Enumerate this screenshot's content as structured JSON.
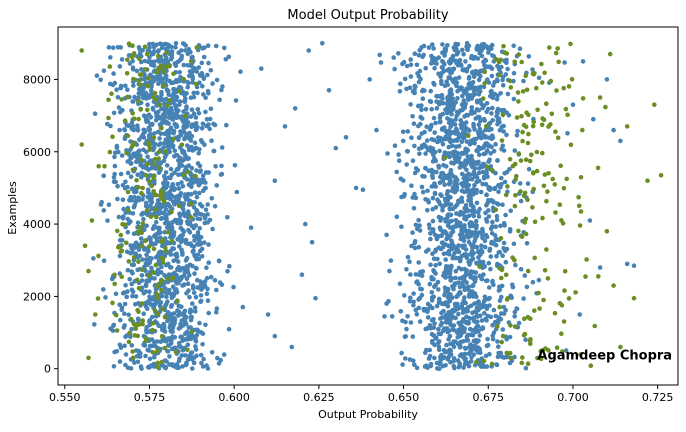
{
  "chart_data": {
    "type": "scatter",
    "title": "Model Output Probability",
    "xlabel": "Output Probability",
    "ylabel": "Examples",
    "xlim": [
      0.548,
      0.731
    ],
    "ylim": [
      -450,
      9450
    ],
    "xticks": [
      0.55,
      0.575,
      0.6,
      0.625,
      0.65,
      0.675,
      0.7,
      0.725
    ],
    "xtick_labels": [
      "0.550",
      "0.575",
      "0.600",
      "0.625",
      "0.650",
      "0.675",
      "0.700",
      "0.725"
    ],
    "yticks": [
      0,
      2000,
      4000,
      6000,
      8000
    ],
    "ytick_labels": [
      "0",
      "2000",
      "4000",
      "6000",
      "8000"
    ],
    "grid": false,
    "legend": "none",
    "series": [
      {
        "color": "#4682B4",
        "description": "majority class points",
        "clusters": [
          {
            "x_center": 0.58,
            "x_spread": 0.0075,
            "count": 1650,
            "y_min": 0,
            "y_max": 9000
          },
          {
            "x_center": 0.667,
            "x_spread": 0.008,
            "count": 1650,
            "y_min": 0,
            "y_max": 9000
          }
        ],
        "outliers": [
          [
            0.61,
            1500
          ],
          [
            0.612,
            5200
          ],
          [
            0.615,
            6700
          ],
          [
            0.618,
            7200
          ],
          [
            0.62,
            2600
          ],
          [
            0.621,
            4000
          ],
          [
            0.622,
            8800
          ],
          [
            0.624,
            1950
          ],
          [
            0.626,
            9000
          ],
          [
            0.628,
            7700
          ],
          [
            0.63,
            6100
          ],
          [
            0.633,
            6400
          ],
          [
            0.636,
            5000
          ],
          [
            0.638,
            4950
          ],
          [
            0.645,
            3700
          ],
          [
            0.648,
            4200
          ],
          [
            0.645,
            1800
          ],
          [
            0.64,
            8000
          ],
          [
            0.642,
            6600
          ],
          [
            0.612,
            900
          ],
          [
            0.617,
            600
          ],
          [
            0.623,
            3500
          ],
          [
            0.608,
            8300
          ],
          [
            0.605,
            3900
          ],
          [
            0.7,
            7300
          ],
          [
            0.703,
            8500
          ],
          [
            0.706,
            6900
          ],
          [
            0.708,
            2800
          ],
          [
            0.71,
            8000
          ],
          [
            0.712,
            6600
          ],
          [
            0.714,
            6300
          ],
          [
            0.716,
            2900
          ],
          [
            0.718,
            2850
          ],
          [
            0.705,
            4100
          ],
          [
            0.702,
            1500
          ],
          [
            0.698,
            500
          ]
        ]
      },
      {
        "color": "#6B8E23",
        "description": "minority class points",
        "clusters": [
          {
            "x_center": 0.575,
            "x_spread": 0.006,
            "count": 200,
            "y_min": 0,
            "y_max": 9000
          },
          {
            "x_center": 0.688,
            "x_spread": 0.009,
            "count": 190,
            "y_min": 0,
            "y_max": 9000
          }
        ],
        "outliers": [
          [
            0.555,
            8800
          ],
          [
            0.555,
            6200
          ],
          [
            0.556,
            3400
          ],
          [
            0.557,
            2700
          ],
          [
            0.559,
            1500
          ],
          [
            0.557,
            300
          ],
          [
            0.56,
            5600
          ],
          [
            0.558,
            4100
          ],
          [
            0.716,
            6700
          ],
          [
            0.718,
            1950
          ],
          [
            0.722,
            5200
          ],
          [
            0.724,
            7300
          ],
          [
            0.726,
            5350
          ],
          [
            0.714,
            600
          ],
          [
            0.712,
            2300
          ],
          [
            0.71,
            3800
          ],
          [
            0.711,
            8700
          ],
          [
            0.708,
            7500
          ]
        ]
      }
    ],
    "annotations": [
      {
        "text": "Agamdeep Chopra",
        "x": 0.6895,
        "y": 250
      }
    ]
  }
}
